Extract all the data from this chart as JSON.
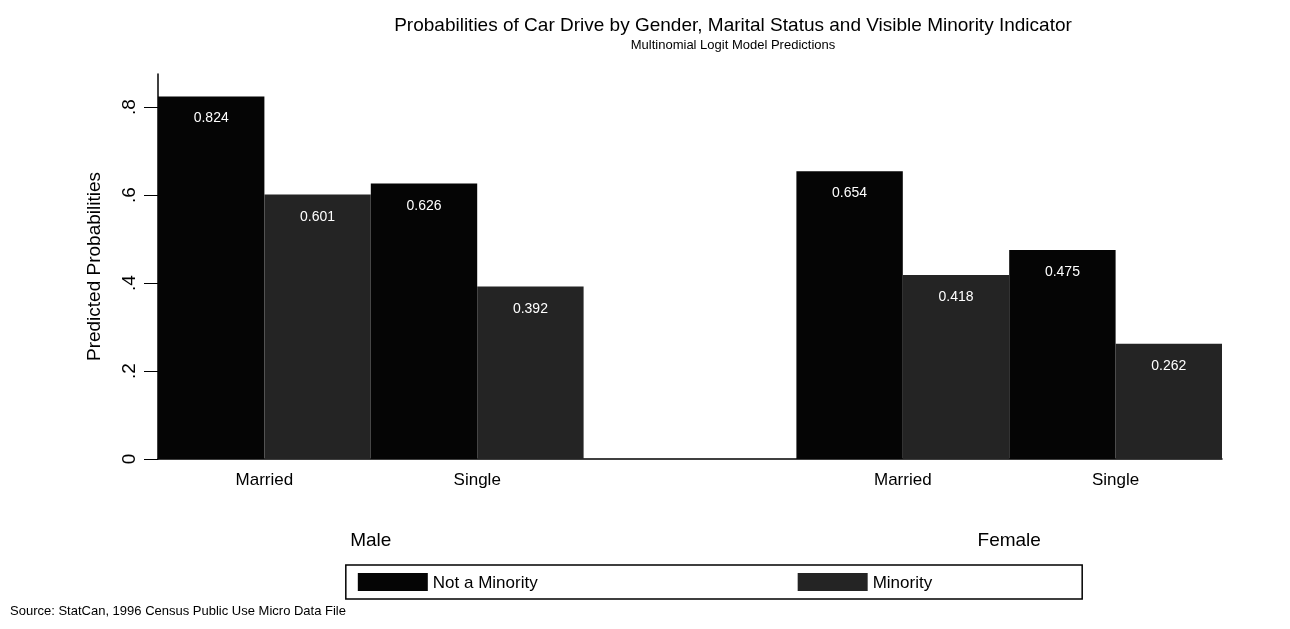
{
  "chart_data": {
    "type": "bar",
    "title": "Probabilities of Car Drive by Gender, Marital Status and Visible Minority Indicator",
    "subtitle": "Multinomial Logit Model Predictions",
    "ylabel": "Predicted Probabilities",
    "categories": [
      "Married",
      "Single",
      null,
      "Married",
      "Single"
    ],
    "series": [
      {
        "name": "Not a Minority",
        "color": "#050505",
        "values": [
          0.824,
          0.626,
          null,
          0.654,
          0.475
        ]
      },
      {
        "name": "Minority",
        "color": "#242424",
        "values": [
          0.601,
          0.392,
          null,
          0.418,
          0.262
        ]
      }
    ],
    "ylim": [
      0,
      0.875
    ],
    "yticks": [
      {
        "value": 0,
        "label": "0"
      },
      {
        "value": 0.2,
        "label": ".2"
      },
      {
        "value": 0.4,
        "label": ".4"
      },
      {
        "value": 0.6,
        "label": ".6"
      },
      {
        "value": 0.8,
        "label": ".8"
      }
    ],
    "data_labels": true,
    "grid": false,
    "legend": "bottom",
    "annotations": [
      "Male",
      "Female",
      "Source: StatCan, 1996 Census Public Use Micro Data File"
    ]
  }
}
